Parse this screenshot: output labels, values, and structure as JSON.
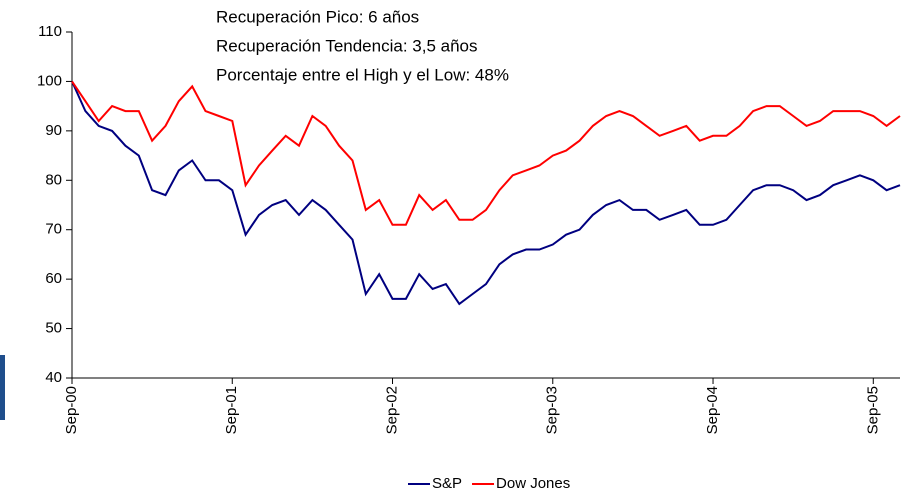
{
  "chart_data": {
    "type": "line",
    "annotations": [
      "Recuperación Pico: 6 años",
      "Recuperación Tendencia: 3,5 años",
      "Porcentaje entre el High y el Low: 48%"
    ],
    "x": [
      "2000-09",
      "2000-10",
      "2000-11",
      "2000-12",
      "2001-01",
      "2001-02",
      "2001-03",
      "2001-04",
      "2001-05",
      "2001-06",
      "2001-07",
      "2001-08",
      "2001-09",
      "2001-10",
      "2001-11",
      "2001-12",
      "2002-01",
      "2002-02",
      "2002-03",
      "2002-04",
      "2002-05",
      "2002-06",
      "2002-07",
      "2002-08",
      "2002-09",
      "2002-10",
      "2002-11",
      "2002-12",
      "2003-01",
      "2003-02",
      "2003-03",
      "2003-04",
      "2003-05",
      "2003-06",
      "2003-07",
      "2003-08",
      "2003-09",
      "2003-10",
      "2003-11",
      "2003-12",
      "2004-01",
      "2004-02",
      "2004-03",
      "2004-04",
      "2004-05",
      "2004-06",
      "2004-07",
      "2004-08",
      "2004-09",
      "2004-10",
      "2004-11",
      "2004-12",
      "2005-01",
      "2005-02",
      "2005-03",
      "2005-04",
      "2005-05",
      "2005-06",
      "2005-07",
      "2005-08",
      "2005-09",
      "2005-10",
      "2005-11"
    ],
    "series": [
      {
        "name": "S&P",
        "color": "#000080",
        "values": [
          100,
          94,
          91,
          90,
          87,
          85,
          78,
          77,
          82,
          84,
          80,
          80,
          78,
          69,
          73,
          75,
          76,
          73,
          76,
          74,
          71,
          68,
          57,
          61,
          56,
          56,
          61,
          58,
          59,
          55,
          57,
          59,
          63,
          65,
          66,
          66,
          67,
          69,
          70,
          73,
          75,
          76,
          74,
          74,
          72,
          73,
          74,
          71,
          71,
          72,
          75,
          78,
          79,
          79,
          78,
          76,
          77,
          79,
          80,
          81,
          80,
          78,
          79
        ]
      },
      {
        "name": "Dow Jones",
        "color": "#ff0000",
        "values": [
          100,
          96,
          92,
          95,
          94,
          94,
          88,
          91,
          96,
          99,
          94,
          93,
          92,
          79,
          83,
          86,
          89,
          87,
          93,
          91,
          87,
          84,
          74,
          76,
          71,
          71,
          77,
          74,
          76,
          72,
          72,
          74,
          78,
          81,
          82,
          83,
          85,
          86,
          88,
          91,
          93,
          94,
          93,
          91,
          89,
          90,
          91,
          88,
          89,
          89,
          91,
          94,
          95,
          95,
          93,
          91,
          92,
          94,
          94,
          94,
          93,
          91,
          93
        ]
      }
    ],
    "xlim": [
      "2000-09",
      "2005-11"
    ],
    "xticks": [
      {
        "value": "2000-09",
        "label": "Sep-00"
      },
      {
        "value": "2001-09",
        "label": "Sep-01"
      },
      {
        "value": "2002-09",
        "label": "Sep-02"
      },
      {
        "value": "2003-09",
        "label": "Sep-03"
      },
      {
        "value": "2004-09",
        "label": "Sep-04"
      },
      {
        "value": "2005-09",
        "label": "Sep-05"
      }
    ],
    "ylim": [
      40,
      110
    ],
    "yticks": [
      40,
      50,
      60,
      70,
      80,
      90,
      100,
      110
    ],
    "grid": false,
    "legend": "bottom"
  }
}
